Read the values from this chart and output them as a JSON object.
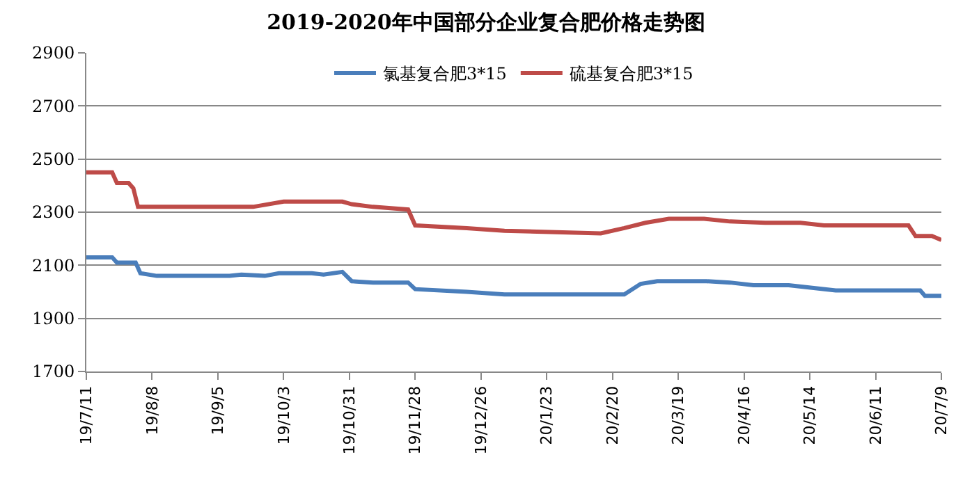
{
  "chart_data": {
    "type": "line",
    "title": "2019-2020年中国部分企业复合肥价格走势图",
    "ylim": [
      1700,
      2900
    ],
    "yticks": [
      1700,
      1900,
      2100,
      2300,
      2500,
      2700,
      2900
    ],
    "xlim": [
      "2019-07-11",
      "2020-07-09"
    ],
    "xticks": [
      {
        "value": "2019-07-11",
        "label": "19/7/11"
      },
      {
        "value": "2019-08-08",
        "label": "19/8/8"
      },
      {
        "value": "2019-09-05",
        "label": "19/9/5"
      },
      {
        "value": "2019-10-03",
        "label": "19/10/3"
      },
      {
        "value": "2019-10-31",
        "label": "19/10/31"
      },
      {
        "value": "2019-11-28",
        "label": "19/11/28"
      },
      {
        "value": "2019-12-26",
        "label": "19/12/26"
      },
      {
        "value": "2020-01-23",
        "label": "20/1/23"
      },
      {
        "value": "2020-02-20",
        "label": "20/2/20"
      },
      {
        "value": "2020-03-19",
        "label": "20/3/19"
      },
      {
        "value": "2020-04-16",
        "label": "20/4/16"
      },
      {
        "value": "2020-05-14",
        "label": "20/5/14"
      },
      {
        "value": "2020-06-11",
        "label": "20/6/11"
      },
      {
        "value": "2020-07-09",
        "label": "20/7/9"
      }
    ],
    "grid": "y",
    "legend": "top",
    "marker": "none",
    "line_style": "solid",
    "series": [
      {
        "name": "氯基复合肥3*15",
        "color": "#4a7ebb",
        "x": [
          "2019-07-11",
          "2019-07-22",
          "2019-07-24",
          "2019-08-01",
          "2019-08-03",
          "2019-08-10",
          "2019-09-10",
          "2019-09-15",
          "2019-09-25",
          "2019-10-01",
          "2019-10-15",
          "2019-10-20",
          "2019-10-28",
          "2019-11-01",
          "2019-11-10",
          "2019-11-25",
          "2019-11-28",
          "2019-12-20",
          "2020-01-05",
          "2020-02-25",
          "2020-03-03",
          "2020-03-10",
          "2020-03-31",
          "2020-04-10",
          "2020-04-20",
          "2020-05-05",
          "2020-05-15",
          "2020-05-25",
          "2020-06-30",
          "2020-07-02",
          "2020-07-09"
        ],
        "values": [
          2130,
          2130,
          2110,
          2110,
          2070,
          2060,
          2060,
          2065,
          2060,
          2070,
          2070,
          2065,
          2075,
          2040,
          2035,
          2035,
          2010,
          2000,
          1990,
          1990,
          2030,
          2040,
          2040,
          2035,
          2025,
          2025,
          2015,
          2005,
          2005,
          1985,
          1985
        ]
      },
      {
        "name": "硫基复合肥3*15",
        "color": "#be4b48",
        "x": [
          "2019-07-11",
          "2019-07-22",
          "2019-07-24",
          "2019-07-29",
          "2019-07-31",
          "2019-08-02",
          "2019-09-20",
          "2019-10-03",
          "2019-10-28",
          "2019-11-01",
          "2019-11-10",
          "2019-11-25",
          "2019-11-28",
          "2019-12-20",
          "2020-01-05",
          "2020-02-15",
          "2020-02-25",
          "2020-03-05",
          "2020-03-15",
          "2020-03-30",
          "2020-04-10",
          "2020-04-25",
          "2020-05-10",
          "2020-05-20",
          "2020-06-25",
          "2020-06-28",
          "2020-07-05",
          "2020-07-09"
        ],
        "values": [
          2450,
          2450,
          2410,
          2410,
          2390,
          2320,
          2320,
          2340,
          2340,
          2330,
          2320,
          2310,
          2250,
          2240,
          2230,
          2220,
          2240,
          2260,
          2275,
          2275,
          2265,
          2260,
          2260,
          2250,
          2250,
          2210,
          2210,
          2195
        ]
      }
    ]
  }
}
